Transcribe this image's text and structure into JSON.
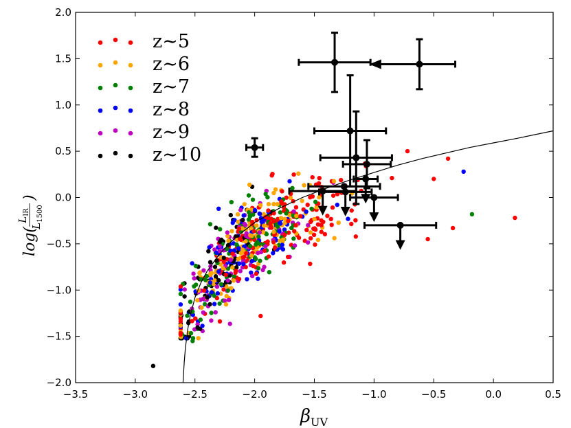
{
  "chart_data": {
    "type": "scatter",
    "title": "",
    "xlabel": "β",
    "xlabel_sub": "UV",
    "ylabel_prefix": "log(",
    "ylabel_num": "L",
    "ylabel_num_sub": "IR",
    "ylabel_den": "L",
    "ylabel_den_sub": "1500",
    "ylabel_suffix": ")",
    "xlim": [
      -3.5,
      0.5
    ],
    "ylim": [
      -2.0,
      2.0
    ],
    "xticks": [
      -3.5,
      -3.0,
      -2.5,
      -2.0,
      -1.5,
      -1.0,
      -0.5,
      0.0,
      0.5
    ],
    "yticks": [
      -2.0,
      -1.5,
      -1.0,
      -0.5,
      0.0,
      0.5,
      1.0,
      1.5,
      2.0
    ],
    "xtick_labels": [
      "−3.5",
      "−3.0",
      "−2.5",
      "−2.0",
      "−1.5",
      "−1.0",
      "−0.5",
      "0.0",
      "0.5"
    ],
    "ytick_labels": [
      "−2.0",
      "−1.5",
      "−1.0",
      "−0.5",
      "0.0",
      "0.5",
      "1.0",
      "1.5",
      "2.0"
    ],
    "grid": false,
    "legend_position": "top-left",
    "series": [
      {
        "name": "z∼5",
        "color": "#ff0000"
      },
      {
        "name": "z∼6",
        "color": "#ffa500"
      },
      {
        "name": "z∼7",
        "color": "#008000"
      },
      {
        "name": "z∼8",
        "color": "#0000ff"
      },
      {
        "name": "z∼9",
        "color": "#bf00bf"
      },
      {
        "name": "z∼10",
        "color": "#000000"
      }
    ],
    "scatter_trend": {
      "description_points": [
        {
          "x": -2.55,
          "y": -1.25
        },
        {
          "x": -2.4,
          "y": -0.95
        },
        {
          "x": -2.25,
          "y": -0.7
        },
        {
          "x": -2.1,
          "y": -0.5
        },
        {
          "x": -1.9,
          "y": -0.35
        },
        {
          "x": -1.7,
          "y": -0.2
        },
        {
          "x": -1.5,
          "y": -0.12
        },
        {
          "x": -1.3,
          "y": -0.05
        }
      ],
      "outliers": [
        {
          "x": -0.38,
          "y": 0.42,
          "s": 0
        },
        {
          "x": -0.34,
          "y": -0.33,
          "s": 0
        },
        {
          "x": 0.18,
          "y": -0.22,
          "s": 0
        },
        {
          "x": -0.18,
          "y": -0.18,
          "s": 2
        },
        {
          "x": -0.25,
          "y": 0.28,
          "s": 3
        },
        {
          "x": -2.52,
          "y": -1.55,
          "s": 2
        },
        {
          "x": -2.85,
          "y": -1.82,
          "s": 5
        },
        {
          "x": -2.55,
          "y": -1.5,
          "s": 5
        },
        {
          "x": -0.55,
          "y": -0.45,
          "s": 0
        },
        {
          "x": -0.72,
          "y": 0.5,
          "s": 0
        },
        {
          "x": -0.5,
          "y": 0.2,
          "s": 0
        },
        {
          "x": -1.95,
          "y": -1.28,
          "s": 0
        }
      ]
    },
    "curve": {
      "x": [
        -2.6,
        -2.59,
        -2.58,
        -2.56,
        -2.54,
        -2.5,
        -2.45,
        -2.4,
        -2.3,
        -2.2,
        -2.1,
        -2.0,
        -1.8,
        -1.6,
        -1.4,
        -1.2,
        -1.0,
        -0.8,
        -0.6,
        -0.4,
        -0.2,
        0.0,
        0.2,
        0.5
      ],
      "y": [
        -2.0,
        -1.78,
        -1.62,
        -1.42,
        -1.28,
        -1.08,
        -0.92,
        -0.8,
        -0.62,
        -0.48,
        -0.37,
        -0.27,
        -0.12,
        0.0,
        0.1,
        0.19,
        0.27,
        0.35,
        0.42,
        0.48,
        0.54,
        0.59,
        0.64,
        0.72
      ]
    },
    "measurements": [
      {
        "x": -1.33,
        "y": 1.46,
        "xerr": 0.3,
        "yerr_low": 0.32,
        "yerr_high": 0.32,
        "upper_limit": false
      },
      {
        "x": -0.62,
        "y": 1.44,
        "xerr_high": 0.3,
        "yerr_low": 0.27,
        "yerr_high": 0.27,
        "left_limit": true
      },
      {
        "x": -2.0,
        "y": 0.54,
        "xerr": 0.07,
        "yerr_low": 0.1,
        "yerr_high": 0.1,
        "upper_limit": false
      },
      {
        "x": -1.2,
        "y": 0.72,
        "xerr": 0.3,
        "yerr_low": 0.6,
        "yerr_high": 0.6,
        "upper_limit": false
      },
      {
        "x": -1.15,
        "y": 0.43,
        "xerr": 0.3,
        "yerr_low": 0.5,
        "yerr_high": 0.5,
        "upper_limit": false
      },
      {
        "x": -1.06,
        "y": 0.36,
        "xerr": 0.2,
        "yerr_low": 0.26,
        "yerr_high": 0.26,
        "upper_limit": false
      },
      {
        "x": -1.25,
        "y": 0.12,
        "xerr": 0.3,
        "yerr_low": 0.0,
        "yerr_high": 0.0,
        "upper_limit": false
      },
      {
        "x": -1.0,
        "y": 0.0,
        "xerr": 0.2,
        "upper_limit": true
      },
      {
        "x": -1.43,
        "y": 0.07,
        "xerr": 0.28,
        "upper_limit": true
      },
      {
        "x": -1.24,
        "y": 0.06,
        "xerr": 0.22,
        "upper_limit": true
      },
      {
        "x": -1.07,
        "y": 0.2,
        "xerr": 0.1,
        "upper_limit": true
      },
      {
        "x": -0.78,
        "y": -0.3,
        "xerr": 0.3,
        "upper_limit": true
      }
    ]
  }
}
